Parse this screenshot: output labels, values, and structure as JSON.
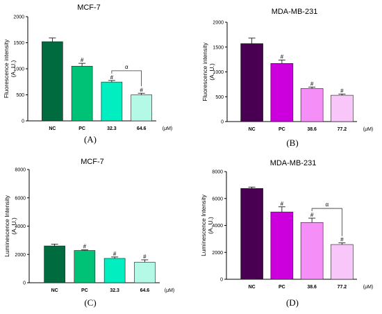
{
  "unit_label": "(μM)",
  "chart_data": [
    {
      "type": "bar",
      "panel_label": "(A)",
      "title": "MCF-7",
      "ylabel": "Fluorescence intensity (A. U.)",
      "ylabel_lines": [
        "Fluorescence intensity",
        "(A. U.)"
      ],
      "xlabel": "",
      "categories": [
        "NC",
        "PC",
        "32.3",
        "64.6"
      ],
      "values": [
        1520,
        1050,
        745,
        500
      ],
      "errors": [
        70,
        55,
        30,
        30
      ],
      "markers": [
        "",
        "#",
        "#",
        "#"
      ],
      "colors": [
        "#006b3f",
        "#00c277",
        "#00eec0",
        "#b4f8e6"
      ],
      "ylim": [
        0,
        2000
      ],
      "yticks": [
        0,
        500,
        1000,
        1500,
        2000
      ],
      "bracket": {
        "from": 2,
        "to": 3,
        "label": "α"
      }
    },
    {
      "type": "bar",
      "panel_label": "(B)",
      "title": "MDA-MB-231",
      "ylabel": "Fluorescence intensity (A. U.)",
      "ylabel_lines": [
        "Fluorescence intensity",
        "(A. U.)"
      ],
      "xlabel": "",
      "categories": [
        "NC",
        "PC",
        "38.6",
        "77.2"
      ],
      "values": [
        1570,
        1170,
        665,
        530
      ],
      "errors": [
        110,
        70,
        30,
        25
      ],
      "markers": [
        "",
        "#",
        "#",
        "#"
      ],
      "colors": [
        "#4a0052",
        "#cc00dd",
        "#f58ef7",
        "#f8c6f8"
      ],
      "ylim": [
        0,
        2000
      ],
      "yticks": [
        0,
        500,
        1000,
        1500,
        2000
      ],
      "bracket": null
    },
    {
      "type": "bar",
      "panel_label": "(C)",
      "title": "MCF-7",
      "ylabel": "Luminescence Intensity (A. U.)",
      "ylabel_lines": [
        "Luminescence Intensity",
        "(A. U.)"
      ],
      "xlabel": "",
      "categories": [
        "NC",
        "PC",
        "32.3",
        "64.6"
      ],
      "values": [
        2600,
        2280,
        1720,
        1450
      ],
      "errors": [
        130,
        40,
        100,
        170
      ],
      "markers": [
        "",
        "#",
        "#",
        "#"
      ],
      "colors": [
        "#006b3f",
        "#00c277",
        "#00eec0",
        "#b4f8e6"
      ],
      "ylim": [
        0,
        8000
      ],
      "yticks": [
        0,
        2000,
        4000,
        6000,
        8000
      ],
      "bracket": null
    },
    {
      "type": "bar",
      "panel_label": "(D)",
      "title": "MDA-MB-231",
      "ylabel": "Luminescence Intensity (A. U.)",
      "ylabel_lines": [
        "Luminescence Intensity",
        "(A. U.)"
      ],
      "xlabel": "",
      "categories": [
        "NC",
        "PC",
        "38.6",
        "77.2"
      ],
      "values": [
        6750,
        5000,
        4220,
        2580
      ],
      "errors": [
        100,
        380,
        320,
        120
      ],
      "markers": [
        "",
        "#",
        "#",
        "#"
      ],
      "colors": [
        "#4a0052",
        "#cc00dd",
        "#f58ef7",
        "#f8c6f8"
      ],
      "ylim": [
        0,
        8000
      ],
      "yticks": [
        0,
        2000,
        4000,
        6000,
        8000
      ],
      "bracket": {
        "from": 2,
        "to": 3,
        "label": "α"
      }
    }
  ]
}
